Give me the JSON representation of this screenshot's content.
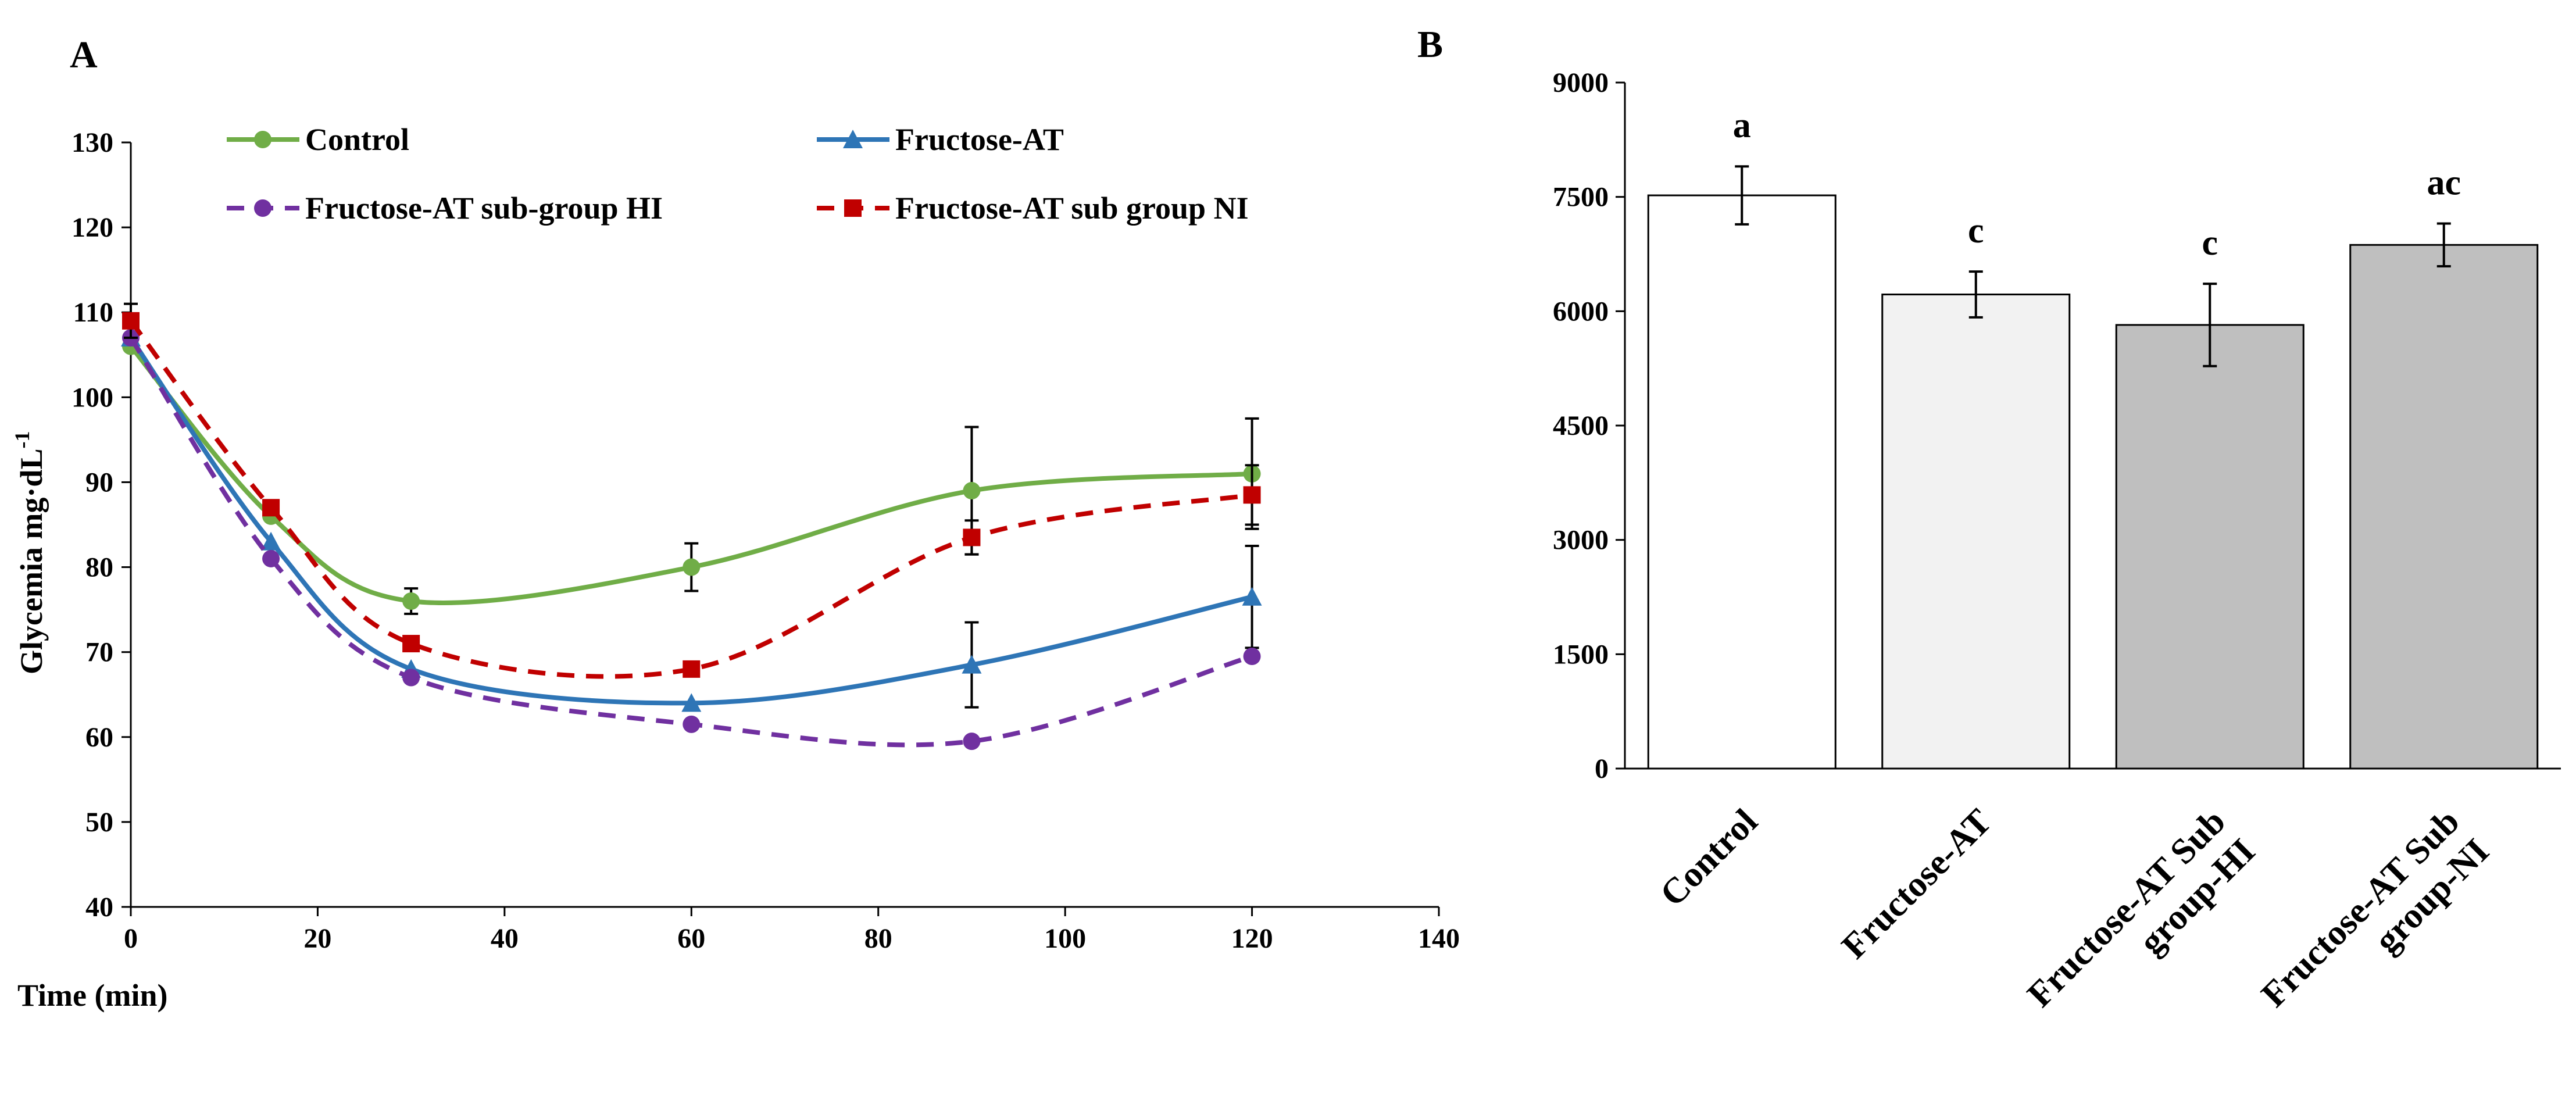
{
  "chart_data": [
    {
      "panel": "A",
      "type": "line",
      "xlabel": "Time (min)",
      "ylabel": "Glycemia mg·dL",
      "ylabel_sup": "-1",
      "xlim": [
        0,
        140
      ],
      "ylim": [
        40,
        130
      ],
      "xticks": [
        "0",
        "20",
        "40",
        "60",
        "80",
        "100",
        "120",
        "140"
      ],
      "yticks": [
        "40",
        "50",
        "60",
        "70",
        "80",
        "90",
        "100",
        "110",
        "120",
        "130"
      ],
      "grid": false,
      "legend_position": "top",
      "x": [
        0,
        15,
        30,
        60,
        90,
        120
      ],
      "series": [
        {
          "name": "Control",
          "values": [
            106,
            86,
            76,
            80,
            89,
            91
          ],
          "errors": [
            0,
            0,
            1.5,
            2.8,
            7.5,
            6.5
          ],
          "color": "#70AD47",
          "line_style": "solid",
          "marker": "circle"
        },
        {
          "name": "Fructose-AT",
          "values": [
            107,
            83,
            68,
            64,
            68.5,
            76.5
          ],
          "errors": [
            0,
            0,
            0,
            0,
            5,
            6
          ],
          "color": "#2E75B6",
          "line_style": "solid",
          "marker": "triangle"
        },
        {
          "name": "Fructose-AT sub-group HI",
          "values": [
            107,
            81,
            67,
            61.5,
            59.5,
            69.5
          ],
          "errors": [
            0,
            0,
            0,
            0,
            0,
            0
          ],
          "color": "#7030A0",
          "line_style": "dashed",
          "marker": "circle"
        },
        {
          "name": "Fructose-AT sub group NI",
          "values": [
            109,
            87,
            71,
            68,
            83.5,
            88.5
          ],
          "errors": [
            2,
            0,
            0,
            0,
            2,
            3.5
          ],
          "color": "#C00000",
          "line_style": "dashed",
          "marker": "square"
        }
      ]
    },
    {
      "panel": "B",
      "type": "bar",
      "ylim": [
        0,
        9000
      ],
      "yticks": [
        "0",
        "1500",
        "3000",
        "4500",
        "6000",
        "7500",
        "9000"
      ],
      "categories": [
        [
          "Control"
        ],
        [
          "Fructose-AT"
        ],
        [
          "Fructose-AT Sub",
          "group-HI"
        ],
        [
          "Fructose-AT Sub",
          "group-NI"
        ]
      ],
      "values": [
        7520,
        6220,
        5820,
        6870
      ],
      "errors": [
        380,
        300,
        540,
        280
      ],
      "letters": [
        "a",
        "c",
        "c",
        "ac"
      ],
      "bar_colors": [
        "#FFFFFF",
        "#F2F2F2",
        "#BFBFBF",
        "#BFBFBF"
      ]
    }
  ]
}
